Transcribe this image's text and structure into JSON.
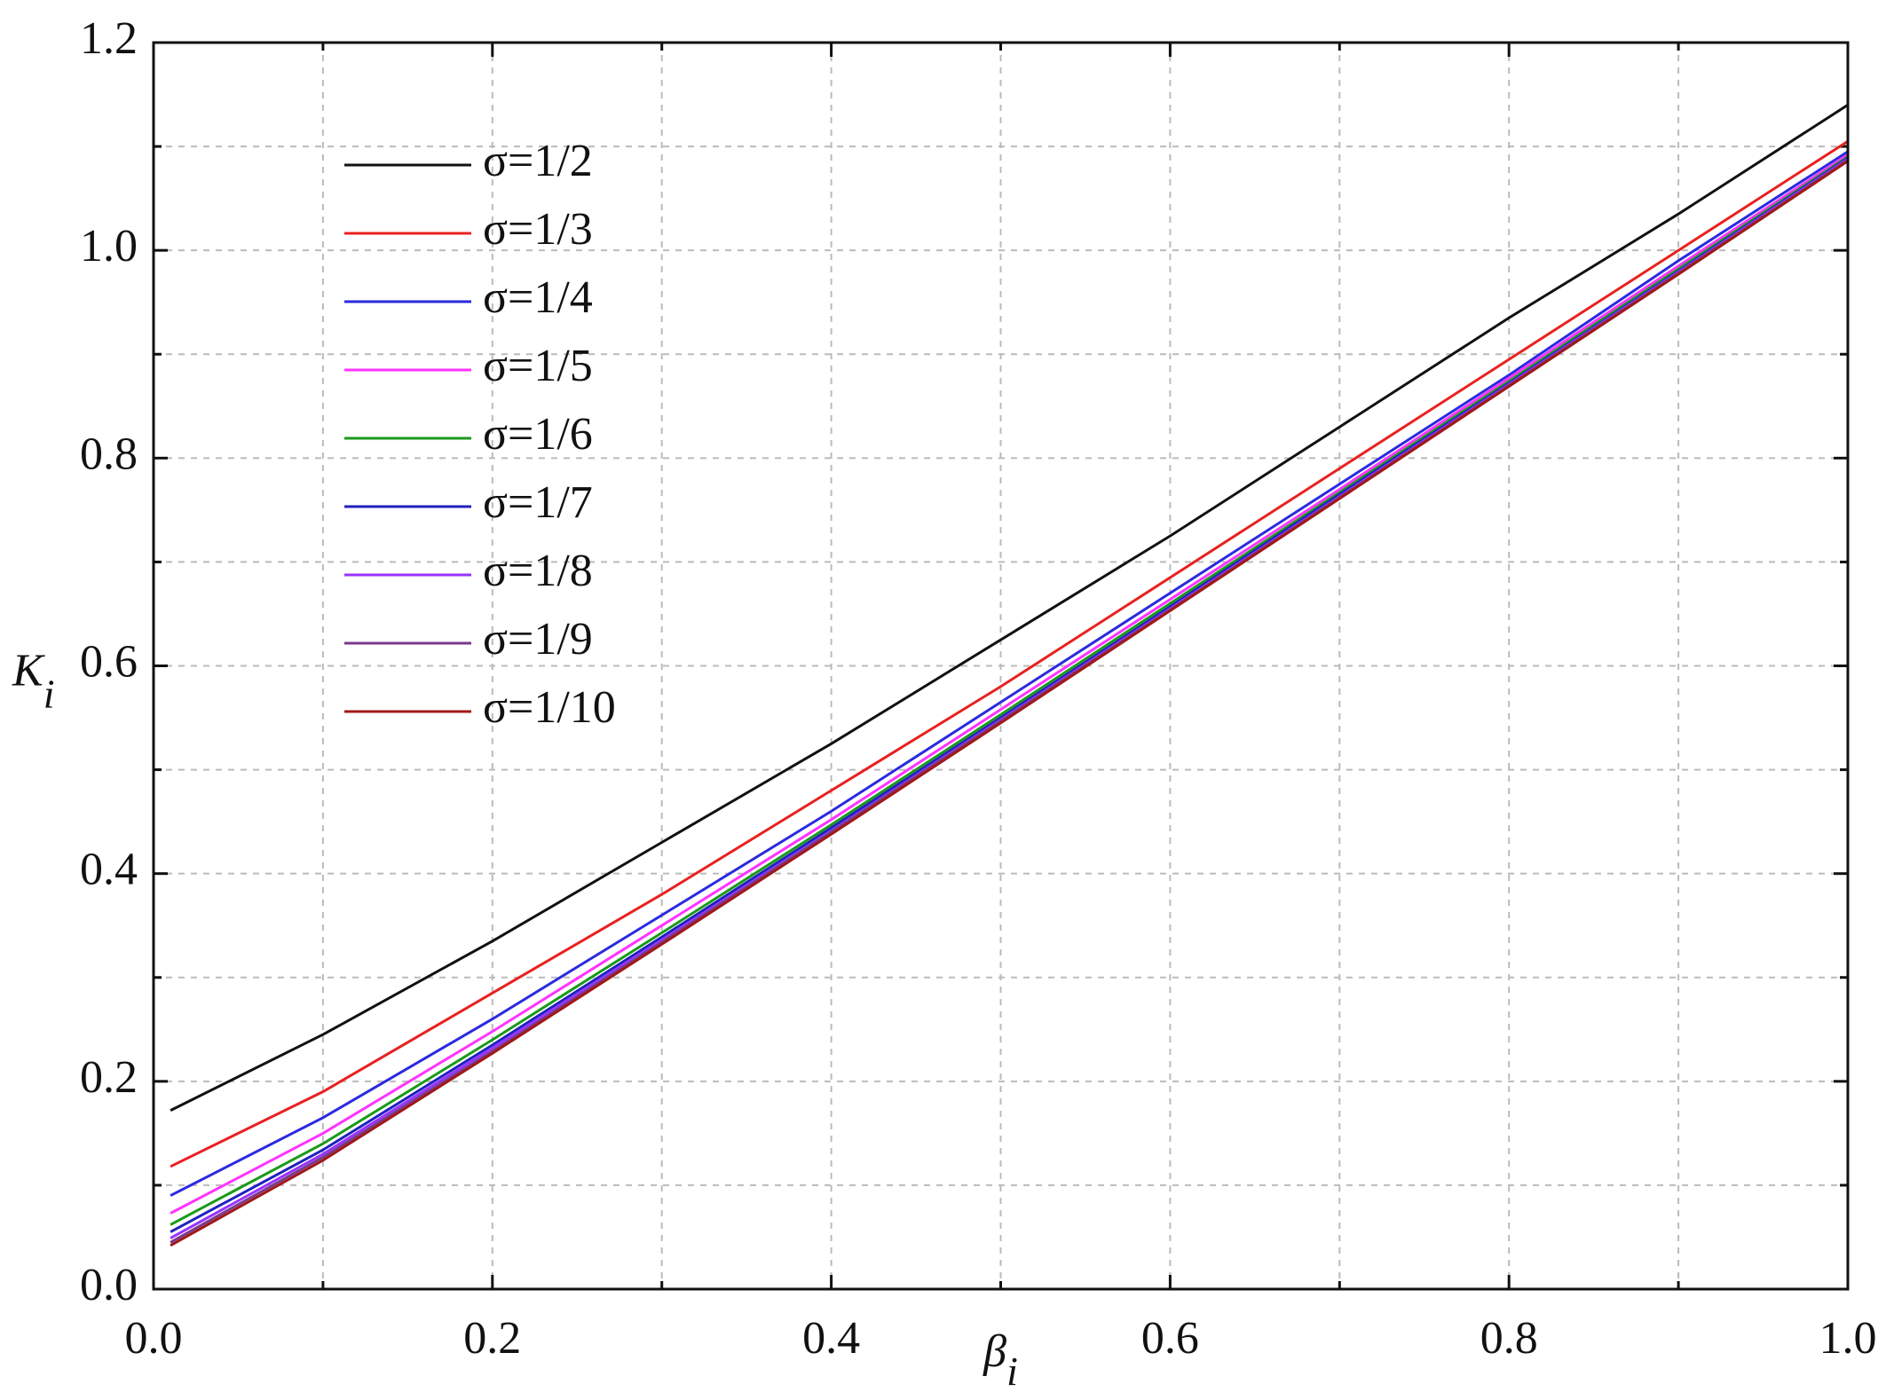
{
  "chart_data": {
    "type": "line",
    "x_label": {
      "text": "β",
      "subscript": "i"
    },
    "y_label": {
      "text": "K",
      "subscript": "i"
    },
    "x": [
      0.01,
      0.1,
      0.2,
      0.3,
      0.4,
      0.5,
      0.6,
      0.7,
      0.8,
      0.9,
      1.0
    ],
    "series": [
      {
        "name": "σ=1/2",
        "color": "#111111",
        "values": [
          0.172,
          0.245,
          0.335,
          0.43,
          0.525,
          0.625,
          0.725,
          0.83,
          0.935,
          1.035,
          1.14
        ]
      },
      {
        "name": "σ=1/3",
        "color": "#e8211f",
        "values": [
          0.118,
          0.19,
          0.285,
          0.38,
          0.48,
          0.58,
          0.685,
          0.79,
          0.895,
          1.0,
          1.105
        ]
      },
      {
        "name": "σ=1/4",
        "color": "#2a2ae0",
        "values": [
          0.09,
          0.165,
          0.26,
          0.36,
          0.46,
          0.565,
          0.67,
          0.775,
          0.88,
          0.99,
          1.095
        ]
      },
      {
        "name": "σ=1/5",
        "color": "#ff33ff",
        "values": [
          0.073,
          0.15,
          0.248,
          0.35,
          0.452,
          0.558,
          0.664,
          0.77,
          0.877,
          0.985,
          1.092
        ]
      },
      {
        "name": "σ=1/6",
        "color": "#1a9a1a",
        "values": [
          0.062,
          0.14,
          0.24,
          0.343,
          0.447,
          0.553,
          0.66,
          0.767,
          0.874,
          0.982,
          1.09
        ]
      },
      {
        "name": "σ=1/7",
        "color": "#2020c0",
        "values": [
          0.055,
          0.134,
          0.235,
          0.339,
          0.444,
          0.55,
          0.657,
          0.765,
          0.872,
          0.98,
          1.089
        ]
      },
      {
        "name": "σ=1/8",
        "color": "#9933ff",
        "values": [
          0.049,
          0.13,
          0.232,
          0.336,
          0.441,
          0.548,
          0.655,
          0.763,
          0.871,
          0.979,
          1.088
        ]
      },
      {
        "name": "σ=1/9",
        "color": "#7a3a8a",
        "values": [
          0.045,
          0.127,
          0.229,
          0.334,
          0.44,
          0.547,
          0.654,
          0.762,
          0.87,
          0.978,
          1.087
        ]
      },
      {
        "name": "σ=1/10",
        "color": "#a01818",
        "values": [
          0.042,
          0.124,
          0.227,
          0.332,
          0.438,
          0.545,
          0.653,
          0.761,
          0.869,
          0.977,
          1.086
        ]
      }
    ],
    "xlim": [
      0,
      1
    ],
    "ylim": [
      0,
      1.2
    ],
    "xticks": [
      {
        "value": 0,
        "label": "0.0"
      },
      0.2,
      0.4,
      0.6,
      0.8,
      {
        "value": 1,
        "label": "1.0"
      }
    ],
    "yticks": [
      {
        "value": 0,
        "label": "0.0"
      },
      0.2,
      0.4,
      0.6,
      0.8,
      {
        "value": 1,
        "label": "1.0"
      },
      1.2
    ],
    "xminorticks": [
      0.1,
      0.3,
      0.5,
      0.7,
      0.9
    ],
    "yminorticks": [
      0.1,
      0.3,
      0.5,
      0.7,
      0.9,
      1.1
    ],
    "grid": true,
    "legend": "upper-left"
  }
}
